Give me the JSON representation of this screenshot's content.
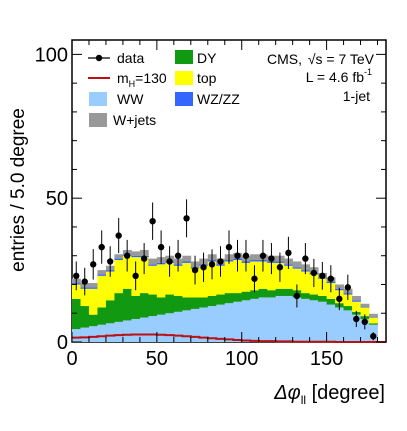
{
  "chart_data": {
    "type": "bar",
    "stacked": true,
    "xlabel": "Δφ_ll [degree]",
    "ylabel": "entries / 5.0 degree",
    "xlim": [
      0,
      185
    ],
    "ylim": [
      0,
      105
    ],
    "x_ticks": [
      "0",
      "50",
      "100",
      "150"
    ],
    "y_ticks": [
      "0",
      "50",
      "100"
    ],
    "bin_width": 5,
    "bin_edges_start": [
      0,
      5,
      10,
      15,
      20,
      25,
      30,
      35,
      40,
      45,
      50,
      55,
      60,
      65,
      70,
      75,
      80,
      85,
      90,
      95,
      100,
      105,
      110,
      115,
      120,
      125,
      130,
      135,
      140,
      145,
      150,
      155,
      160,
      165,
      170,
      175,
      180
    ],
    "annotation": {
      "experiment": "CMS,",
      "sqrt_s": "√s = 7 TeV",
      "luminosity": "L = 4.6 fb",
      "luminosity_unit_exp": "-1",
      "category": "1-jet"
    },
    "legend": [
      {
        "key": "data",
        "label": "data",
        "style": "marker",
        "color": "#000000"
      },
      {
        "key": "DY",
        "label": "DY",
        "style": "box",
        "color": "#119911"
      },
      {
        "key": "higgs",
        "label": "m",
        "label_sub": "H",
        "label_suffix": "=130",
        "style": "line",
        "color": "#bb1111"
      },
      {
        "key": "top",
        "label": "top",
        "style": "box",
        "color": "#ffff00"
      },
      {
        "key": "WW",
        "label": "WW",
        "style": "box",
        "color": "#99ccff"
      },
      {
        "key": "WZZZ",
        "label": "WZ/ZZ",
        "style": "box",
        "color": "#3366ff"
      },
      {
        "key": "Wjets",
        "label": "W+jets",
        "style": "box",
        "color": "#999999"
      }
    ],
    "series": [
      {
        "key": "WW",
        "color": "#99ccff",
        "values": [
          4.5,
          5.0,
          5.5,
          6.0,
          6.5,
          7.0,
          7.5,
          8.0,
          8.5,
          9.0,
          9.5,
          10.0,
          10.5,
          11.0,
          11.5,
          12.0,
          12.5,
          13.0,
          13.5,
          14.0,
          14.5,
          15.0,
          15.5,
          15.5,
          16.0,
          16.0,
          15.5,
          15.0,
          14.5,
          14.0,
          13.0,
          12.0,
          11.0,
          9.5,
          8.0,
          6.0,
          0
        ]
      },
      {
        "key": "DY",
        "color": "#119911",
        "values": [
          10.5,
          7.5,
          4.0,
          6.0,
          8.0,
          10.0,
          11.0,
          8.0,
          8.5,
          7.5,
          6.0,
          6.5,
          5.5,
          4.5,
          4.0,
          3.5,
          3.5,
          3.5,
          3.5,
          3.0,
          3.0,
          3.0,
          3.0,
          2.5,
          2.5,
          2.5,
          2.5,
          2.0,
          2.0,
          2.0,
          2.0,
          1.5,
          1.5,
          1.0,
          1.0,
          0.5,
          0
        ]
      },
      {
        "key": "top",
        "color": "#ffff00",
        "values": [
          5.0,
          6.0,
          9.0,
          11.0,
          10.0,
          11.5,
          11.5,
          13.5,
          12.5,
          10.0,
          11.5,
          11.0,
          10.5,
          12.0,
          10.0,
          11.0,
          12.0,
          10.0,
          11.0,
          11.5,
          10.0,
          10.0,
          9.5,
          9.5,
          9.0,
          8.0,
          7.5,
          7.5,
          7.0,
          6.0,
          5.5,
          4.5,
          4.0,
          3.5,
          3.0,
          2.0,
          0
        ]
      },
      {
        "key": "WZZZ",
        "color": "#3366ff",
        "values": [
          0.5,
          0.5,
          0.5,
          0.5,
          0.5,
          0.5,
          0.5,
          0.5,
          0.5,
          0.5,
          0.5,
          0.5,
          0.5,
          0.5,
          0.5,
          0.5,
          0.5,
          0.5,
          0.5,
          0.5,
          0.5,
          0.5,
          0.5,
          0.5,
          0.5,
          0.5,
          0.5,
          0.5,
          0.5,
          0.5,
          0.5,
          0.5,
          0.5,
          0.5,
          0.3,
          0.3,
          0
        ]
      },
      {
        "key": "Wjets",
        "color": "#999999",
        "values": [
          1.5,
          1.5,
          1.5,
          1.5,
          1.5,
          1.5,
          1.5,
          1.5,
          2.0,
          2.0,
          2.0,
          2.0,
          2.0,
          2.0,
          2.0,
          2.0,
          2.0,
          2.0,
          2.0,
          2.0,
          2.0,
          2.0,
          2.0,
          2.0,
          2.0,
          2.0,
          2.0,
          2.0,
          2.0,
          1.5,
          1.5,
          1.5,
          1.5,
          1.5,
          1.0,
          1.0,
          0
        ]
      }
    ],
    "higgs": {
      "key": "higgs",
      "color": "#bb1111",
      "values": [
        1.5,
        1.6,
        1.8,
        2.0,
        2.2,
        2.4,
        2.5,
        2.6,
        2.6,
        2.6,
        2.5,
        2.4,
        2.2,
        2.0,
        1.8,
        1.5,
        1.3,
        1.1,
        0.9,
        0.7,
        0.5,
        0.4,
        0.3,
        0.3,
        0.2,
        0.2,
        0.1,
        0.1,
        0.1,
        0.1,
        0.1,
        0.0,
        0.0,
        0.0,
        0.0,
        0.0,
        0
      ]
    },
    "data": [
      {
        "x": 2.5,
        "y": 23,
        "err": 5.0
      },
      {
        "x": 7.5,
        "y": 21,
        "err": 4.8
      },
      {
        "x": 12.5,
        "y": 27,
        "err": 5.3
      },
      {
        "x": 17.5,
        "y": 33,
        "err": 5.8
      },
      {
        "x": 22.5,
        "y": 28,
        "err": 5.3
      },
      {
        "x": 27.5,
        "y": 37,
        "err": 6.1
      },
      {
        "x": 32.5,
        "y": 30,
        "err": 5.5
      },
      {
        "x": 37.5,
        "y": 23,
        "err": 5.0
      },
      {
        "x": 42.5,
        "y": 29,
        "err": 5.4
      },
      {
        "x": 47.5,
        "y": 42,
        "err": 6.5
      },
      {
        "x": 52.5,
        "y": 33,
        "err": 5.8
      },
      {
        "x": 57.5,
        "y": 28,
        "err": 5.3
      },
      {
        "x": 62.5,
        "y": 30,
        "err": 5.5
      },
      {
        "x": 67.5,
        "y": 43,
        "err": 6.6
      },
      {
        "x": 72.5,
        "y": 25,
        "err": 5.0
      },
      {
        "x": 77.5,
        "y": 26,
        "err": 5.1
      },
      {
        "x": 82.5,
        "y": 27,
        "err": 5.2
      },
      {
        "x": 87.5,
        "y": 28,
        "err": 5.3
      },
      {
        "x": 92.5,
        "y": 33,
        "err": 5.8
      },
      {
        "x": 97.5,
        "y": 30,
        "err": 5.5
      },
      {
        "x": 102.5,
        "y": 30,
        "err": 5.5
      },
      {
        "x": 107.5,
        "y": 22,
        "err": 4.7
      },
      {
        "x": 112.5,
        "y": 30,
        "err": 5.5
      },
      {
        "x": 117.5,
        "y": 29,
        "err": 5.4
      },
      {
        "x": 122.5,
        "y": 26,
        "err": 5.1
      },
      {
        "x": 127.5,
        "y": 31,
        "err": 5.6
      },
      {
        "x": 132.5,
        "y": 16,
        "err": 4.0
      },
      {
        "x": 137.5,
        "y": 29,
        "err": 5.4
      },
      {
        "x": 142.5,
        "y": 24,
        "err": 4.9
      },
      {
        "x": 147.5,
        "y": 23,
        "err": 4.8
      },
      {
        "x": 152.5,
        "y": 22,
        "err": 4.7
      },
      {
        "x": 157.5,
        "y": 15,
        "err": 3.9
      },
      {
        "x": 162.5,
        "y": 19,
        "err": 4.4
      },
      {
        "x": 167.5,
        "y": 8,
        "err": 2.8
      },
      {
        "x": 172.5,
        "y": 7,
        "err": 2.6
      },
      {
        "x": 177.5,
        "y": 2,
        "err": 1.4
      }
    ]
  }
}
